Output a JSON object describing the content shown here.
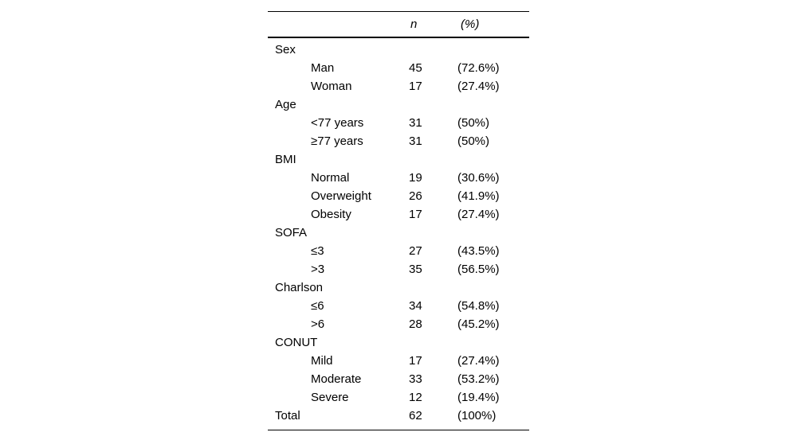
{
  "colors": {
    "background": "#ffffff",
    "text": "#000000",
    "rule": "#000000"
  },
  "table": {
    "header": {
      "n_label": "n",
      "pct_label": "(%)"
    },
    "rows": [
      {
        "label": "Sex",
        "indent": false,
        "n": "",
        "pct": ""
      },
      {
        "label": "Man",
        "indent": true,
        "n": "45",
        "pct": "(72.6%)"
      },
      {
        "label": "Woman",
        "indent": true,
        "n": "17",
        "pct": "(27.4%)"
      },
      {
        "label": "Age",
        "indent": false,
        "n": "",
        "pct": ""
      },
      {
        "label": "<77 years",
        "indent": true,
        "n": "31",
        "pct": "(50%)"
      },
      {
        "label": "≥77 years",
        "indent": true,
        "n": "31",
        "pct": "(50%)"
      },
      {
        "label": "BMI",
        "indent": false,
        "n": "",
        "pct": ""
      },
      {
        "label": "Normal",
        "indent": true,
        "n": "19",
        "pct": "(30.6%)"
      },
      {
        "label": "Overweight",
        "indent": true,
        "n": "26",
        "pct": "(41.9%)"
      },
      {
        "label": "Obesity",
        "indent": true,
        "n": "17",
        "pct": "(27.4%)"
      },
      {
        "label": "SOFA",
        "indent": false,
        "n": "",
        "pct": ""
      },
      {
        "label": "≤3",
        "indent": true,
        "n": "27",
        "pct": "(43.5%)"
      },
      {
        "label": ">3",
        "indent": true,
        "n": "35",
        "pct": "(56.5%)"
      },
      {
        "label": "Charlson",
        "indent": false,
        "n": "",
        "pct": ""
      },
      {
        "label": "≤6",
        "indent": true,
        "n": "34",
        "pct": "(54.8%)"
      },
      {
        "label": ">6",
        "indent": true,
        "n": "28",
        "pct": "(45.2%)"
      },
      {
        "label": "CONUT",
        "indent": false,
        "n": "",
        "pct": ""
      },
      {
        "label": "Mild",
        "indent": true,
        "n": "17",
        "pct": "(27.4%)"
      },
      {
        "label": "Moderate",
        "indent": true,
        "n": "33",
        "pct": "(53.2%)"
      },
      {
        "label": "Severe",
        "indent": true,
        "n": "12",
        "pct": "(19.4%)"
      },
      {
        "label": "Total",
        "indent": false,
        "n": "62",
        "pct": "(100%)"
      }
    ]
  }
}
